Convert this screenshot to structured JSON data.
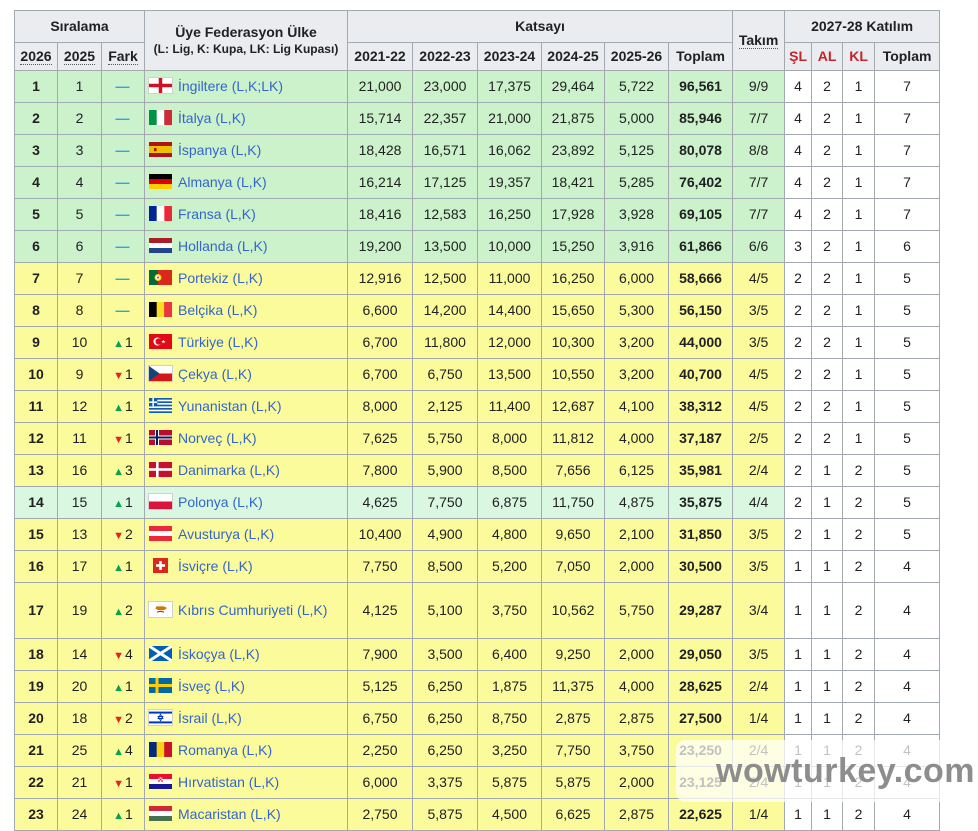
{
  "table": {
    "header": {
      "siralama": "Sıralama",
      "y2026": "2026",
      "y2025": "2025",
      "fark": "Fark",
      "country_title": "Üye Federasyon Ülke",
      "country_sub": "(L: Lig, K: Kupa, LK: Lig Kupası)",
      "katsayi": "Katsayı",
      "seasons": [
        "2021-22",
        "2022-23",
        "2023-24",
        "2024-25",
        "2025-26"
      ],
      "toplam": "Toplam",
      "takim": "Takım",
      "katilim": "2027-28 Katılım",
      "sl": "ŞL",
      "al": "AL",
      "kl": "KL",
      "katilim_toplam": "Toplam"
    },
    "colors": {
      "row_green": "#ccf2cc",
      "row_green_alt": "#d9f7e1",
      "row_yellow": "#fbfb9b",
      "header_bg": "#eaecf0",
      "border": "#a2a9b1",
      "link_blue": "#3366cc",
      "up_arrow_green": "#00a550",
      "down_arrow_red": "#e8231e",
      "no_change_blue": "#2aa7e0",
      "competition_red": "#c0272d"
    },
    "rows": [
      {
        "rank2026": "1",
        "rank2025": "1",
        "change": {
          "dir": "same",
          "value": ""
        },
        "flag": "england",
        "country": "İngiltere (L,K;LK)",
        "values": [
          "21,000",
          "23,000",
          "17,375",
          "29,464",
          "5,722"
        ],
        "total": "96,561",
        "teams": "9/9",
        "sl": "4",
        "al": "2",
        "kl": "1",
        "part_total": "7",
        "highlight": "green",
        "tall": false
      },
      {
        "rank2026": "2",
        "rank2025": "2",
        "change": {
          "dir": "same",
          "value": ""
        },
        "flag": "italy",
        "country": "İtalya (L,K)",
        "values": [
          "15,714",
          "22,357",
          "21,000",
          "21,875",
          "5,000"
        ],
        "total": "85,946",
        "teams": "7/7",
        "sl": "4",
        "al": "2",
        "kl": "1",
        "part_total": "7",
        "highlight": "green",
        "tall": false
      },
      {
        "rank2026": "3",
        "rank2025": "3",
        "change": {
          "dir": "same",
          "value": ""
        },
        "flag": "spain",
        "country": "İspanya (L,K)",
        "values": [
          "18,428",
          "16,571",
          "16,062",
          "23,892",
          "5,125"
        ],
        "total": "80,078",
        "teams": "8/8",
        "sl": "4",
        "al": "2",
        "kl": "1",
        "part_total": "7",
        "highlight": "green",
        "tall": false
      },
      {
        "rank2026": "4",
        "rank2025": "4",
        "change": {
          "dir": "same",
          "value": ""
        },
        "flag": "germany",
        "country": "Almanya (L,K)",
        "values": [
          "16,214",
          "17,125",
          "19,357",
          "18,421",
          "5,285"
        ],
        "total": "76,402",
        "teams": "7/7",
        "sl": "4",
        "al": "2",
        "kl": "1",
        "part_total": "7",
        "highlight": "green",
        "tall": false
      },
      {
        "rank2026": "5",
        "rank2025": "5",
        "change": {
          "dir": "same",
          "value": ""
        },
        "flag": "france",
        "country": "Fransa (L,K)",
        "values": [
          "18,416",
          "12,583",
          "16,250",
          "17,928",
          "3,928"
        ],
        "total": "69,105",
        "teams": "7/7",
        "sl": "4",
        "al": "2",
        "kl": "1",
        "part_total": "7",
        "highlight": "green",
        "tall": false
      },
      {
        "rank2026": "6",
        "rank2025": "6",
        "change": {
          "dir": "same",
          "value": ""
        },
        "flag": "netherlands",
        "country": "Hollanda (L,K)",
        "values": [
          "19,200",
          "13,500",
          "10,000",
          "15,250",
          "3,916"
        ],
        "total": "61,866",
        "teams": "6/6",
        "sl": "3",
        "al": "2",
        "kl": "1",
        "part_total": "6",
        "highlight": "green",
        "tall": false
      },
      {
        "rank2026": "7",
        "rank2025": "7",
        "change": {
          "dir": "same",
          "value": ""
        },
        "flag": "portugal",
        "country": "Portekiz (L,K)",
        "values": [
          "12,916",
          "12,500",
          "11,000",
          "16,250",
          "6,000"
        ],
        "total": "58,666",
        "teams": "4/5",
        "sl": "2",
        "al": "2",
        "kl": "1",
        "part_total": "5",
        "highlight": "yellow",
        "tall": false
      },
      {
        "rank2026": "8",
        "rank2025": "8",
        "change": {
          "dir": "same",
          "value": ""
        },
        "flag": "belgium",
        "country": "Belçika (L,K)",
        "values": [
          "6,600",
          "14,200",
          "14,400",
          "15,650",
          "5,300"
        ],
        "total": "56,150",
        "teams": "3/5",
        "sl": "2",
        "al": "2",
        "kl": "1",
        "part_total": "5",
        "highlight": "yellow",
        "tall": false
      },
      {
        "rank2026": "9",
        "rank2025": "10",
        "change": {
          "dir": "up",
          "value": "1"
        },
        "flag": "turkey",
        "country": "Türkiye (L,K)",
        "values": [
          "6,700",
          "11,800",
          "12,000",
          "10,300",
          "3,200"
        ],
        "total": "44,000",
        "teams": "3/5",
        "sl": "2",
        "al": "2",
        "kl": "1",
        "part_total": "5",
        "highlight": "yellow",
        "tall": false
      },
      {
        "rank2026": "10",
        "rank2025": "9",
        "change": {
          "dir": "down",
          "value": "1"
        },
        "flag": "czechia",
        "country": "Çekya (L,K)",
        "values": [
          "6,700",
          "6,750",
          "13,500",
          "10,550",
          "3,200"
        ],
        "total": "40,700",
        "teams": "4/5",
        "sl": "2",
        "al": "2",
        "kl": "1",
        "part_total": "5",
        "highlight": "yellow",
        "tall": false
      },
      {
        "rank2026": "11",
        "rank2025": "12",
        "change": {
          "dir": "up",
          "value": "1"
        },
        "flag": "greece",
        "country": "Yunanistan (L,K)",
        "values": [
          "8,000",
          "2,125",
          "11,400",
          "12,687",
          "4,100"
        ],
        "total": "38,312",
        "teams": "4/5",
        "sl": "2",
        "al": "2",
        "kl": "1",
        "part_total": "5",
        "highlight": "yellow",
        "tall": false
      },
      {
        "rank2026": "12",
        "rank2025": "11",
        "change": {
          "dir": "down",
          "value": "1"
        },
        "flag": "norway",
        "country": "Norveç (L,K)",
        "values": [
          "7,625",
          "5,750",
          "8,000",
          "11,812",
          "4,000"
        ],
        "total": "37,187",
        "teams": "2/5",
        "sl": "2",
        "al": "2",
        "kl": "1",
        "part_total": "5",
        "highlight": "yellow",
        "tall": false
      },
      {
        "rank2026": "13",
        "rank2025": "16",
        "change": {
          "dir": "up",
          "value": "3"
        },
        "flag": "denmark",
        "country": "Danimarka (L,K)",
        "values": [
          "7,800",
          "5,900",
          "8,500",
          "7,656",
          "6,125"
        ],
        "total": "35,981",
        "teams": "2/4",
        "sl": "2",
        "al": "1",
        "kl": "2",
        "part_total": "5",
        "highlight": "yellow",
        "tall": false
      },
      {
        "rank2026": "14",
        "rank2025": "15",
        "change": {
          "dir": "up",
          "value": "1"
        },
        "flag": "poland",
        "country": "Polonya (L,K)",
        "values": [
          "4,625",
          "7,750",
          "6,875",
          "11,750",
          "4,875"
        ],
        "total": "35,875",
        "teams": "4/4",
        "sl": "2",
        "al": "1",
        "kl": "2",
        "part_total": "5",
        "highlight": "green2",
        "tall": false
      },
      {
        "rank2026": "15",
        "rank2025": "13",
        "change": {
          "dir": "down",
          "value": "2"
        },
        "flag": "austria",
        "country": "Avusturya (L,K)",
        "values": [
          "10,400",
          "4,900",
          "4,800",
          "9,650",
          "2,100"
        ],
        "total": "31,850",
        "teams": "3/5",
        "sl": "2",
        "al": "1",
        "kl": "2",
        "part_total": "5",
        "highlight": "yellow",
        "tall": false
      },
      {
        "rank2026": "16",
        "rank2025": "17",
        "change": {
          "dir": "up",
          "value": "1"
        },
        "flag": "switzerland",
        "country": "İsviçre (L,K)",
        "values": [
          "7,750",
          "8,500",
          "5,200",
          "7,050",
          "2,000"
        ],
        "total": "30,500",
        "teams": "3/5",
        "sl": "1",
        "al": "1",
        "kl": "2",
        "part_total": "4",
        "highlight": "yellow",
        "tall": false
      },
      {
        "rank2026": "17",
        "rank2025": "19",
        "change": {
          "dir": "up",
          "value": "2"
        },
        "flag": "cyprus",
        "country": "Kıbrıs Cumhuriyeti (L,K)",
        "values": [
          "4,125",
          "5,100",
          "3,750",
          "10,562",
          "5,750"
        ],
        "total": "29,287",
        "teams": "3/4",
        "sl": "1",
        "al": "1",
        "kl": "2",
        "part_total": "4",
        "highlight": "yellow",
        "tall": true
      },
      {
        "rank2026": "18",
        "rank2025": "14",
        "change": {
          "dir": "down",
          "value": "4"
        },
        "flag": "scotland",
        "country": "İskoçya (L,K)",
        "values": [
          "7,900",
          "3,500",
          "6,400",
          "9,250",
          "2,000"
        ],
        "total": "29,050",
        "teams": "3/5",
        "sl": "1",
        "al": "1",
        "kl": "2",
        "part_total": "4",
        "highlight": "yellow",
        "tall": false
      },
      {
        "rank2026": "19",
        "rank2025": "20",
        "change": {
          "dir": "up",
          "value": "1"
        },
        "flag": "sweden",
        "country": "İsveç (L,K)",
        "values": [
          "5,125",
          "6,250",
          "1,875",
          "11,375",
          "4,000"
        ],
        "total": "28,625",
        "teams": "2/4",
        "sl": "1",
        "al": "1",
        "kl": "2",
        "part_total": "4",
        "highlight": "yellow",
        "tall": false
      },
      {
        "rank2026": "20",
        "rank2025": "18",
        "change": {
          "dir": "down",
          "value": "2"
        },
        "flag": "israel",
        "country": "İsrail (L,K)",
        "values": [
          "6,750",
          "6,250",
          "8,750",
          "2,875",
          "2,875"
        ],
        "total": "27,500",
        "teams": "1/4",
        "sl": "1",
        "al": "1",
        "kl": "2",
        "part_total": "4",
        "highlight": "yellow",
        "tall": false
      },
      {
        "rank2026": "21",
        "rank2025": "25",
        "change": {
          "dir": "up",
          "value": "4"
        },
        "flag": "romania",
        "country": "Romanya (L,K)",
        "values": [
          "2,250",
          "6,250",
          "3,250",
          "7,750",
          "3,750"
        ],
        "total": "23,250",
        "teams": "2/4",
        "sl": "1",
        "al": "1",
        "kl": "2",
        "part_total": "4",
        "highlight": "yellow",
        "tall": false
      },
      {
        "rank2026": "22",
        "rank2025": "21",
        "change": {
          "dir": "down",
          "value": "1"
        },
        "flag": "croatia",
        "country": "Hırvatistan (L,K)",
        "values": [
          "6,000",
          "3,375",
          "5,875",
          "5,875",
          "2,000"
        ],
        "total": "23,125",
        "teams": "2/4",
        "sl": "1",
        "al": "1",
        "kl": "2",
        "part_total": "4",
        "highlight": "yellow",
        "tall": false
      },
      {
        "rank2026": "23",
        "rank2025": "24",
        "change": {
          "dir": "up",
          "value": "1"
        },
        "flag": "hungary",
        "country": "Macaristan (L,K)",
        "values": [
          "2,750",
          "5,875",
          "4,500",
          "6,625",
          "2,875"
        ],
        "total": "22,625",
        "teams": "1/4",
        "sl": "1",
        "al": "1",
        "kl": "2",
        "part_total": "4",
        "highlight": "yellow",
        "tall": false
      }
    ]
  },
  "watermark": {
    "text": "wowturkey.com"
  }
}
